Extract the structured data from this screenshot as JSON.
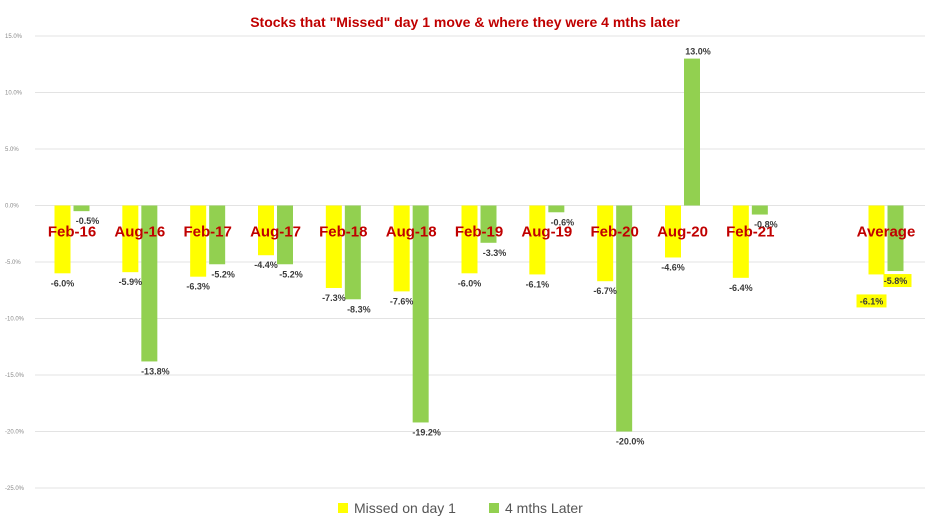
{
  "chart_data": {
    "type": "bar",
    "title": "Stocks that \"Missed\" day 1 move & where they were 4 mths later",
    "categories": [
      "Feb-16",
      "Aug-16",
      "Feb-17",
      "Aug-17",
      "Feb-18",
      "Aug-18",
      "Feb-19",
      "Aug-19",
      "Feb-20",
      "Aug-20",
      "Feb-21",
      "",
      "Average"
    ],
    "series": [
      {
        "name": "Missed on day 1",
        "color": "#ffff00",
        "values": [
          -6.0,
          -5.9,
          -6.3,
          -4.4,
          -7.3,
          -7.6,
          -6.0,
          -6.1,
          -6.7,
          -4.6,
          -6.4,
          null,
          -6.1
        ],
        "labels": [
          "-6.0%",
          "-5.9%",
          "-6.3%",
          "-4.4%",
          "-7.3%",
          "-7.6%",
          "-6.0%",
          "-6.1%",
          "-6.7%",
          "-4.6%",
          "-6.4%",
          "",
          "-6.1%"
        ]
      },
      {
        "name": "4 mths Later",
        "color": "#92d050",
        "values": [
          -0.5,
          -13.8,
          -5.2,
          -5.2,
          -8.3,
          -19.2,
          -3.3,
          -0.6,
          -20.0,
          13.0,
          -0.8,
          null,
          -5.8
        ],
        "labels": [
          "-0.5%",
          "-13.8%",
          "-5.2%",
          "-5.2%",
          "-8.3%",
          "-19.2%",
          "-3.3%",
          "-0.6%",
          "-20.0%",
          "13.0%",
          "-0.8%",
          "",
          "-5.8%"
        ]
      }
    ],
    "y_ticks": [
      "15.0%",
      "10.0%",
      "5.0%",
      "0.0%",
      "-5.0%",
      "-10.0%",
      "-15.0%",
      "-20.0%",
      "-25.0%"
    ],
    "y_tick_values": [
      15,
      10,
      5,
      0,
      -5,
      -10,
      -15,
      -20,
      -25
    ],
    "ylim": [
      -25,
      15
    ],
    "grid": true,
    "legend": "bottom",
    "average_labels_highlight": "#ffff00"
  }
}
